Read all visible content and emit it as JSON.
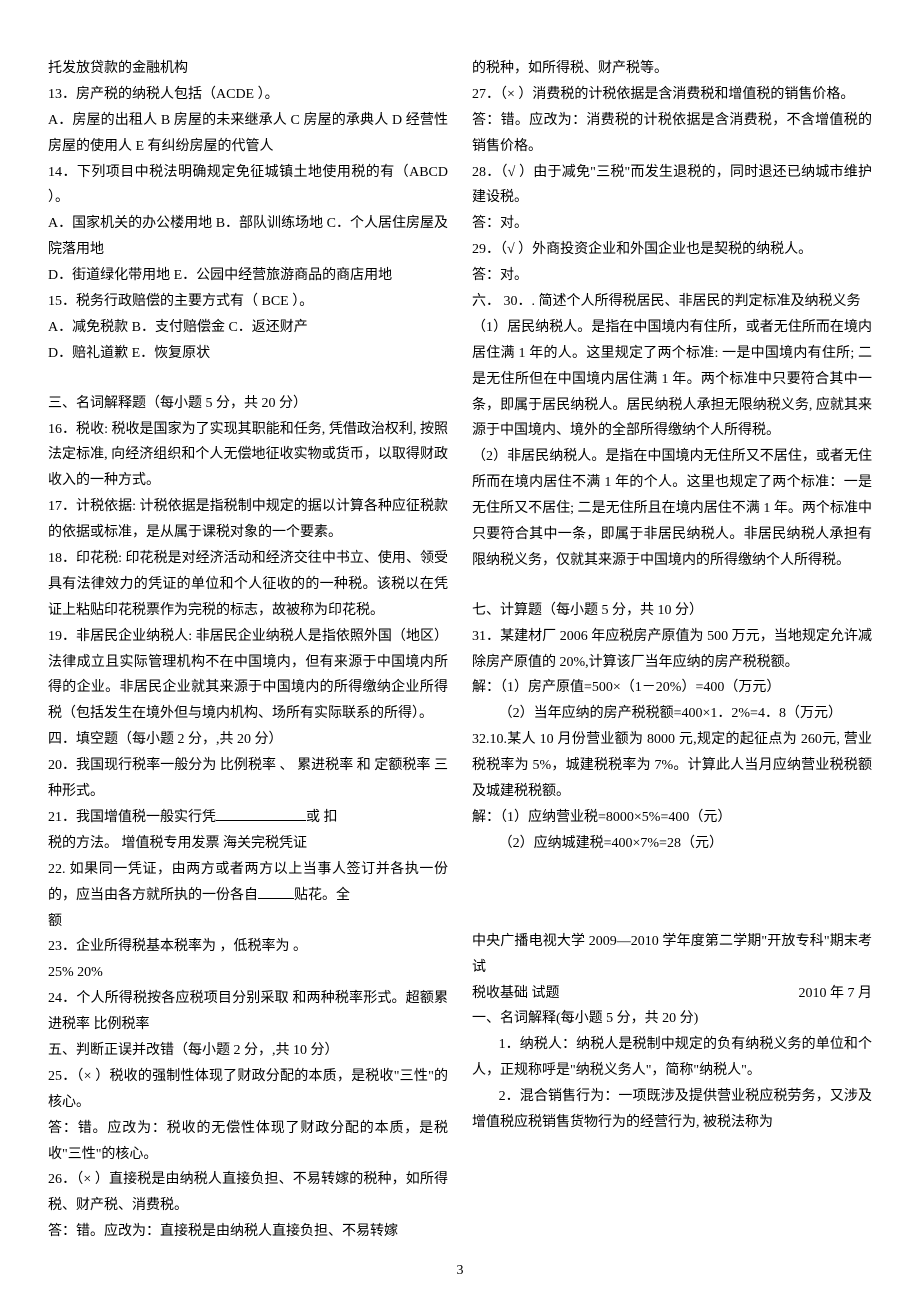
{
  "left": {
    "l0": "托发放贷款的金融机构",
    "q13": "13．房产税的纳税人包括（ACDE   ）。",
    "q13opts": "A．房屋的出租人   B 房屋的未来继承人   C 房屋的承典人    D 经营性房屋的使用人  E 有纠纷房屋的代管人",
    "q14": "14．下列项目中税法明确规定免征城镇土地使用税的有（ABCD   ）。",
    "q14a": "A．国家机关的办公楼用地      B．部队训练场地      C．个人居住房屋及院落用地",
    "q14b": "D．街道绿化带用地            E．公园中经营旅游商品的商店用地",
    "q15": "15．税务行政赔偿的主要方式有（  BCE     ）。",
    "q15a": "A．减免税款             B．支付赔偿金  C．返还财产",
    "q15b": "D．赔礼道歉   E．恢复原状",
    "sec3": "三、名词解释题（每小题 5 分，共 20 分）",
    "q16": "16．税收:  税收是国家为了实现其职能和任务,  凭借政治权利,  按照法定标准,  向经济组织和个人无偿地征收实物或货币，以取得财政收入的一种方式。",
    "q17": "17．计税依据:  计税依据是指税制中规定的据以计算各种应征税款的依据或标准，是从属于课税对象的一个要素。",
    "q18": "18．印花税:  印花税是对经济活动和经济交往中书立、使用、领受具有法律效力的凭证的单位和个人征收的的一种税。该税以在凭证上粘贴印花税票作为完税的标志，故被称为印花税。",
    "q19": "19．非居民企业纳税人:  非居民企业纳税人是指依照外国（地区）法律成立且实际管理机构不在中国境内，但有来源于中国境内所得的企业。非居民企业就其来源于中国境内的所得缴纳企业所得税（包括发生在境外但与境内机构、场所有实际联系的所得）。",
    "sec4": "四．填空题（每小题 2 分，,共 20 分）",
    "q20": "20．我国现行税率一般分为  比例税率  、       累进税率 和  定额税率  三种形式。",
    "q21a": "21．我国增值税一般实行凭",
    "q21b": "或                 扣",
    "q21c": "税的方法。    增值税专用发票   海关完税凭证",
    "q22a": "22. 如果同一凭证，由两方或者两方以上当事人签订并各执一份的，应当由各方就所执的一份各自",
    "q22b": "贴花。全",
    "q22c": "额",
    "q23a": "23．企业所得税基本税率为              ，低税率为              。",
    "q23b": "25%       20%",
    "q24a": "24．个人所得税按各应税项目分别采取                  和两种税率形式。超额累进税率   比例税率",
    "sec5": "五、判断正误并改错（每小题 2 分，,共 10 分）",
    "q25": "25．（×   ）税收的强制性体现了财政分配的本质，是税收\"三性\"的核心。",
    "q25a": "答：错。应改为：税收的无偿性体现了财政分配的本质，是税收\"三性\"的核心。",
    "q26": "26．（×   ）直接税是由纳税人直接负担、不易转嫁的税种，如所得税、财产税、消费税。",
    "q26a": "答：错。应改为：直接税是由纳税人直接负担、不易转嫁"
  },
  "right": {
    "r0": "的税种，如所得税、财产税等。",
    "q27": "27．（×   ）消费税的计税依据是含消费税和增值税的销售价格。",
    "q27a": "答：错。应改为：消费税的计税依据是含消费税，不含增值税的销售价格。",
    "q28": "28．（√  ）由于减免\"三税\"而发生退税的，同时退还已纳城市维护建设税。",
    "q28a": "答：对。",
    "q29": "29．（√  ）外商投资企业和外国企业也是契税的纳税人。",
    "q29a": "答：对。",
    "sec6": "六．  30．.  简述个人所得税居民、非居民的判定标准及纳税义务",
    "q30a": "（1）居民纳税人。是指在中国境内有住所，或者无住所而在境内居住满 1 年的人。这里规定了两个标准:  一是中国境内有住所;  二是无住所但在中国境内居住满 1 年。两个标准中只要符合其中一条，即属于居民纳税人。居民纳税人承担无限纳税义务,  应就其来源于中国境内、境外的全部所得缴纳个人所得税。",
    "q30b": "（2）非居民纳税人。是指在中国境内无住所又不居住，或者无住所而在境内居住不满 1 年的个人。这里也规定了两个标准：一是无住所又不居住;  二是无住所且在境内居住不满 1 年。两个标准中只要符合其中一条，即属于非居民纳税人。非居民纳税人承担有限纳税义务，仅就其来源于中国境内的所得缴纳个人所得税。",
    "sec7": "七、计算题（每小题 5 分，共 10 分）",
    "q31": "31．某建材厂 2006 年应税房产原值为 500 万元，当地规定允许减除房产原值的 20%,计算该厂当年应纳的房产税税额。",
    "q31s1": "解：（1）房产原值=500×（1－20%）=400（万元）",
    "q31s2": "（2）当年应纳的房产税税额=400×1．2%=4．8（万元）",
    "q32": "32.10.某人 10 月份营业额为 8000 元,规定的起征点为 260元,  营业税税率为 5%，城建税税率为 7%。计算此人当月应纳营业税税额及城建税税额。",
    "q32s1": "解：（1）应纳营业税=8000×5%=400（元）",
    "q32s2": "（2）应纳城建税=400×7%=28（元）",
    "hdr1": "中央广播电视大学 2009—2010 学年度第二学期\"开放专科\"期末考试",
    "hdr2a": "  税收基础  试题",
    "hdr2b": "2010 年 7 月",
    "sec1b": "一、名词解释(每小题 5 分，共 20 分)",
    "b1": "1．纳税人：纳税人是税制中规定的负有纳税义务的单位和个人，正规称呼是\"纳税义务人\"，简称\"纳税人\"。",
    "b2": "2．混合销售行为：一项既涉及提供营业税应税劳务，又涉及增值税应税销售货物行为的经营行为,  被税法称为"
  },
  "pagenum": "3"
}
